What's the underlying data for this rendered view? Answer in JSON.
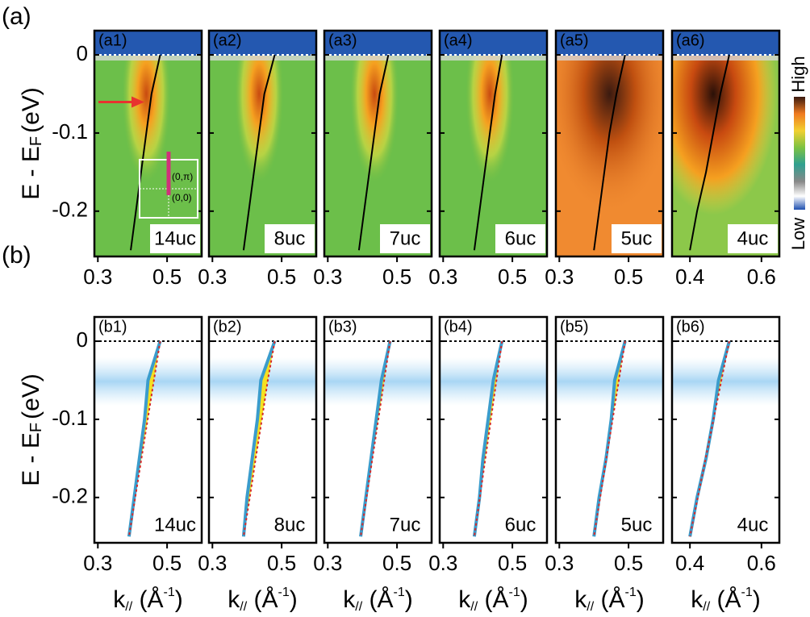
{
  "row_labels": [
    "(a)",
    "(b)"
  ],
  "ylabel": {
    "main": "E - E",
    "sub": "F",
    "unit": "(eV)"
  },
  "xlabel": {
    "main": "k",
    "sub": "//",
    "open": " (Å",
    "sup": "-1",
    "close": ")"
  },
  "colorbar": {
    "high": "High",
    "low": "Low"
  },
  "chart_data": [
    {
      "type": "line",
      "panel": "(a1)",
      "label": "14uc",
      "label_color": "#e8332f",
      "xlim": [
        0.29,
        0.6
      ],
      "xticks": [
        0.3,
        0.5
      ],
      "ylim": [
        -0.258,
        0.031
      ],
      "yticks": [
        -0.2,
        -0.1,
        0
      ],
      "inset_labels": [
        "(0,π)",
        "(0,0)"
      ],
      "series": [
        {
          "color": "#000000",
          "x": [
            0.48,
            0.455,
            0.44,
            0.425,
            0.41,
            0.395
          ],
          "values": [
            0,
            -0.05,
            -0.1,
            -0.15,
            -0.2,
            -0.25
          ]
        }
      ]
    },
    {
      "type": "line",
      "panel": "(a2)",
      "label": "8uc",
      "label_color": "#2e9e6e",
      "xlim": [
        0.29,
        0.6
      ],
      "xticks": [
        0.3,
        0.5
      ],
      "ylim": [
        -0.258,
        0.031
      ],
      "yticks": [
        -0.2,
        -0.1,
        0
      ],
      "series": [
        {
          "color": "#000000",
          "x": [
            0.48,
            0.45,
            0.435,
            0.42,
            0.405,
            0.39
          ],
          "values": [
            0,
            -0.05,
            -0.1,
            -0.15,
            -0.2,
            -0.25
          ]
        }
      ]
    },
    {
      "type": "line",
      "panel": "(a3)",
      "label": "7uc",
      "label_color": "#3aa2cc",
      "xlim": [
        0.29,
        0.6
      ],
      "xticks": [
        0.3,
        0.5
      ],
      "ylim": [
        -0.258,
        0.031
      ],
      "yticks": [
        -0.2,
        -0.1,
        0
      ],
      "series": [
        {
          "color": "#000000",
          "x": [
            0.475,
            0.45,
            0.435,
            0.42,
            0.405,
            0.39
          ],
          "values": [
            0,
            -0.05,
            -0.1,
            -0.15,
            -0.2,
            -0.25
          ]
        }
      ]
    },
    {
      "type": "line",
      "panel": "(a4)",
      "label": "6uc",
      "label_color": "#8cc043",
      "xlim": [
        0.29,
        0.6
      ],
      "xticks": [
        0.3,
        0.5
      ],
      "ylim": [
        -0.258,
        0.031
      ],
      "yticks": [
        -0.2,
        -0.1,
        0
      ],
      "series": [
        {
          "color": "#000000",
          "x": [
            0.47,
            0.45,
            0.435,
            0.42,
            0.405,
            0.39
          ],
          "values": [
            0,
            -0.05,
            -0.1,
            -0.15,
            -0.2,
            -0.25
          ]
        }
      ]
    },
    {
      "type": "line",
      "panel": "(a5)",
      "label": "5uc",
      "label_color": "#7b3a98",
      "xlim": [
        0.29,
        0.6
      ],
      "xticks": [
        0.3,
        0.5
      ],
      "ylim": [
        -0.258,
        0.031
      ],
      "yticks": [
        -0.2,
        -0.1,
        0
      ],
      "series": [
        {
          "color": "#000000",
          "x": [
            0.49,
            0.465,
            0.445,
            0.43,
            0.415,
            0.4
          ],
          "values": [
            0,
            -0.05,
            -0.1,
            -0.15,
            -0.2,
            -0.25
          ]
        }
      ]
    },
    {
      "type": "line",
      "panel": "(a6)",
      "label": "4uc",
      "label_color": "#f29a2e",
      "xlim": [
        0.35,
        0.65
      ],
      "xticks": [
        0.4,
        0.6
      ],
      "ylim": [
        -0.258,
        0.031
      ],
      "yticks": [
        -0.2,
        -0.1,
        0
      ],
      "series": [
        {
          "color": "#000000",
          "x": [
            0.51,
            0.485,
            0.465,
            0.445,
            0.42,
            0.4
          ],
          "values": [
            0,
            -0.05,
            -0.1,
            -0.15,
            -0.2,
            -0.25
          ]
        }
      ]
    },
    {
      "type": "line",
      "panel": "(b1)",
      "label": "14uc",
      "label_color": "#e8332f",
      "xlim": [
        0.29,
        0.6
      ],
      "xticks": [
        0.3,
        0.5
      ],
      "ylim": [
        -0.258,
        0.031
      ],
      "yticks": [
        -0.2,
        -0.1,
        0
      ],
      "series": [
        {
          "color": "#3a9ccc",
          "x": [
            0.48,
            0.445,
            0.435,
            0.42,
            0.405,
            0.39
          ],
          "values": [
            0,
            -0.05,
            -0.1,
            -0.15,
            -0.2,
            -0.25
          ]
        },
        {
          "color": "#d42a2a",
          "x": [
            0.48,
            0.462,
            0.444,
            0.426,
            0.408,
            0.39
          ],
          "values": [
            0,
            -0.05,
            -0.1,
            -0.15,
            -0.2,
            -0.25
          ]
        }
      ]
    },
    {
      "type": "line",
      "panel": "(b2)",
      "label": "8uc",
      "label_color": "#2e9e6e",
      "xlim": [
        0.29,
        0.6
      ],
      "xticks": [
        0.3,
        0.5
      ],
      "ylim": [
        -0.258,
        0.031
      ],
      "yticks": [
        -0.2,
        -0.1,
        0
      ],
      "series": [
        {
          "color": "#3a9ccc",
          "x": [
            0.48,
            0.44,
            0.43,
            0.415,
            0.4,
            0.39
          ],
          "values": [
            0,
            -0.05,
            -0.1,
            -0.15,
            -0.2,
            -0.25
          ]
        },
        {
          "color": "#d42a2a",
          "x": [
            0.48,
            0.46,
            0.443,
            0.425,
            0.408,
            0.39
          ],
          "values": [
            0,
            -0.05,
            -0.1,
            -0.15,
            -0.2,
            -0.25
          ]
        }
      ]
    },
    {
      "type": "line",
      "panel": "(b3)",
      "label": "7uc",
      "label_color": "#3aa2cc",
      "xlim": [
        0.29,
        0.6
      ],
      "xticks": [
        0.3,
        0.5
      ],
      "ylim": [
        -0.258,
        0.031
      ],
      "yticks": [
        -0.2,
        -0.1,
        0
      ],
      "series": [
        {
          "color": "#3a9ccc",
          "x": [
            0.48,
            0.455,
            0.44,
            0.425,
            0.41,
            0.395
          ],
          "values": [
            0,
            -0.05,
            -0.1,
            -0.15,
            -0.2,
            -0.25
          ]
        },
        {
          "color": "#d42a2a",
          "x": [
            0.48,
            0.463,
            0.446,
            0.429,
            0.412,
            0.395
          ],
          "values": [
            0,
            -0.05,
            -0.1,
            -0.15,
            -0.2,
            -0.25
          ]
        }
      ]
    },
    {
      "type": "line",
      "panel": "(b4)",
      "label": "6uc",
      "label_color": "#8cc043",
      "xlim": [
        0.29,
        0.6
      ],
      "xticks": [
        0.3,
        0.5
      ],
      "ylim": [
        -0.258,
        0.031
      ],
      "yticks": [
        -0.2,
        -0.1,
        0
      ],
      "series": [
        {
          "color": "#3a9ccc",
          "x": [
            0.47,
            0.445,
            0.43,
            0.415,
            0.405,
            0.39
          ],
          "values": [
            0,
            -0.05,
            -0.1,
            -0.15,
            -0.2,
            -0.25
          ]
        },
        {
          "color": "#d42a2a",
          "x": [
            0.47,
            0.454,
            0.438,
            0.422,
            0.406,
            0.39
          ],
          "values": [
            0,
            -0.05,
            -0.1,
            -0.15,
            -0.2,
            -0.25
          ]
        }
      ]
    },
    {
      "type": "line",
      "panel": "(b5)",
      "label": "5uc",
      "label_color": "#7b3a98",
      "xlim": [
        0.29,
        0.6
      ],
      "xticks": [
        0.3,
        0.5
      ],
      "ylim": [
        -0.258,
        0.031
      ],
      "yticks": [
        -0.2,
        -0.1,
        0
      ],
      "series": [
        {
          "color": "#3a9ccc",
          "x": [
            0.49,
            0.46,
            0.45,
            0.435,
            0.415,
            0.4
          ],
          "values": [
            0,
            -0.05,
            -0.1,
            -0.15,
            -0.2,
            -0.25
          ]
        },
        {
          "color": "#d42a2a",
          "x": [
            0.49,
            0.472,
            0.454,
            0.436,
            0.418,
            0.4
          ],
          "values": [
            0,
            -0.05,
            -0.1,
            -0.15,
            -0.2,
            -0.25
          ]
        }
      ]
    },
    {
      "type": "line",
      "panel": "(b6)",
      "label": "4uc",
      "label_color": "#f29a2e",
      "xlim": [
        0.35,
        0.65
      ],
      "xticks": [
        0.4,
        0.6
      ],
      "ylim": [
        -0.258,
        0.031
      ],
      "yticks": [
        -0.2,
        -0.1,
        0
      ],
      "series": [
        {
          "color": "#3a9ccc",
          "x": [
            0.51,
            0.48,
            0.465,
            0.445,
            0.42,
            0.4
          ],
          "values": [
            0,
            -0.05,
            -0.1,
            -0.15,
            -0.2,
            -0.25
          ]
        },
        {
          "color": "#d42a2a",
          "x": [
            0.51,
            0.488,
            0.466,
            0.444,
            0.422,
            0.4
          ],
          "values": [
            0,
            -0.05,
            -0.1,
            -0.15,
            -0.2,
            -0.25
          ]
        }
      ]
    }
  ]
}
